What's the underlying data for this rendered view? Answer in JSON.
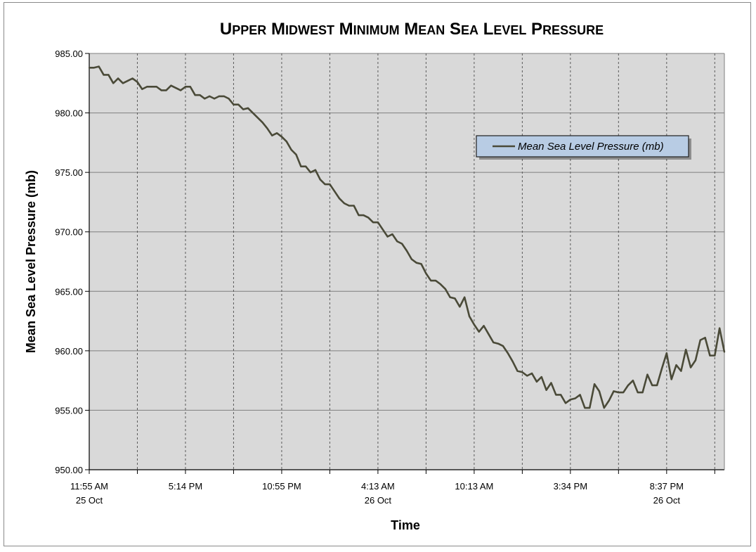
{
  "chart_data": {
    "type": "line",
    "title": "Upper Midwest Minimum Mean Sea Level Pressure",
    "xlabel": "Time",
    "ylabel": "Mean Sea Level Pressure (mb)",
    "ylim": [
      950,
      985
    ],
    "yticks": [
      "950.00",
      "955.00",
      "960.00",
      "965.00",
      "970.00",
      "975.00",
      "980.00",
      "985.00"
    ],
    "grid": {
      "horizontal": "solid",
      "vertical": "dashed"
    },
    "plot_background": "#d9d9d9",
    "line_color": "#4a4a38",
    "xlim": [
      0,
      132
    ],
    "x_tick_positions": [
      0,
      10,
      20,
      30,
      40,
      50,
      60,
      70,
      80,
      90,
      100,
      110,
      120,
      130
    ],
    "x_tick_labels": [
      {
        "index": 0,
        "line1": "11:55 AM",
        "line2": "25 Oct"
      },
      {
        "index": 20,
        "line1": "5:14 PM",
        "line2": ""
      },
      {
        "index": 40,
        "line1": "10:55 PM",
        "line2": ""
      },
      {
        "index": 60,
        "line1": "4:13 AM",
        "line2": "26 Oct"
      },
      {
        "index": 80,
        "line1": "10:13 AM",
        "line2": ""
      },
      {
        "index": 100,
        "line1": "3:34 PM",
        "line2": ""
      },
      {
        "index": 120,
        "line1": "8:37 PM",
        "line2": "26 Oct"
      }
    ],
    "legend": {
      "placement": "upper-right",
      "entry": "Mean Sea Level Pressure (mb)"
    },
    "series": [
      {
        "name": "Mean Sea Level Pressure (mb)",
        "values": [
          983.8,
          983.8,
          983.9,
          983.2,
          983.2,
          982.5,
          982.9,
          982.5,
          982.7,
          982.9,
          982.6,
          982.0,
          982.2,
          982.2,
          982.2,
          981.9,
          981.9,
          982.3,
          982.1,
          981.9,
          982.2,
          982.2,
          981.5,
          981.5,
          981.2,
          981.4,
          981.2,
          981.4,
          981.4,
          981.2,
          980.7,
          980.7,
          980.3,
          980.4,
          980.0,
          979.6,
          979.2,
          978.7,
          978.1,
          978.3,
          978.0,
          977.6,
          976.9,
          976.5,
          975.5,
          975.5,
          975.0,
          975.2,
          974.4,
          974.0,
          974.0,
          973.4,
          972.8,
          972.4,
          972.2,
          972.2,
          971.4,
          971.4,
          971.2,
          970.8,
          970.8,
          970.2,
          969.6,
          969.8,
          969.2,
          969.0,
          968.4,
          967.7,
          967.4,
          967.3,
          966.5,
          965.9,
          965.9,
          965.6,
          965.2,
          964.5,
          964.4,
          963.7,
          964.5,
          962.9,
          962.2,
          961.6,
          962.1,
          961.4,
          960.7,
          960.6,
          960.4,
          959.8,
          959.1,
          958.3,
          958.2,
          957.9,
          958.1,
          957.4,
          957.8,
          956.7,
          957.3,
          956.3,
          956.3,
          955.6,
          955.9,
          956.0,
          956.3,
          955.2,
          955.2,
          957.2,
          956.6,
          955.2,
          955.8,
          956.6,
          956.5,
          956.5,
          957.1,
          957.5,
          956.5,
          956.5,
          958.0,
          957.1,
          957.1,
          958.5,
          959.8,
          957.6,
          958.8,
          958.3,
          960.1,
          958.6,
          959.2,
          960.9,
          961.1,
          959.6,
          959.6,
          961.9,
          959.9
        ]
      }
    ]
  }
}
